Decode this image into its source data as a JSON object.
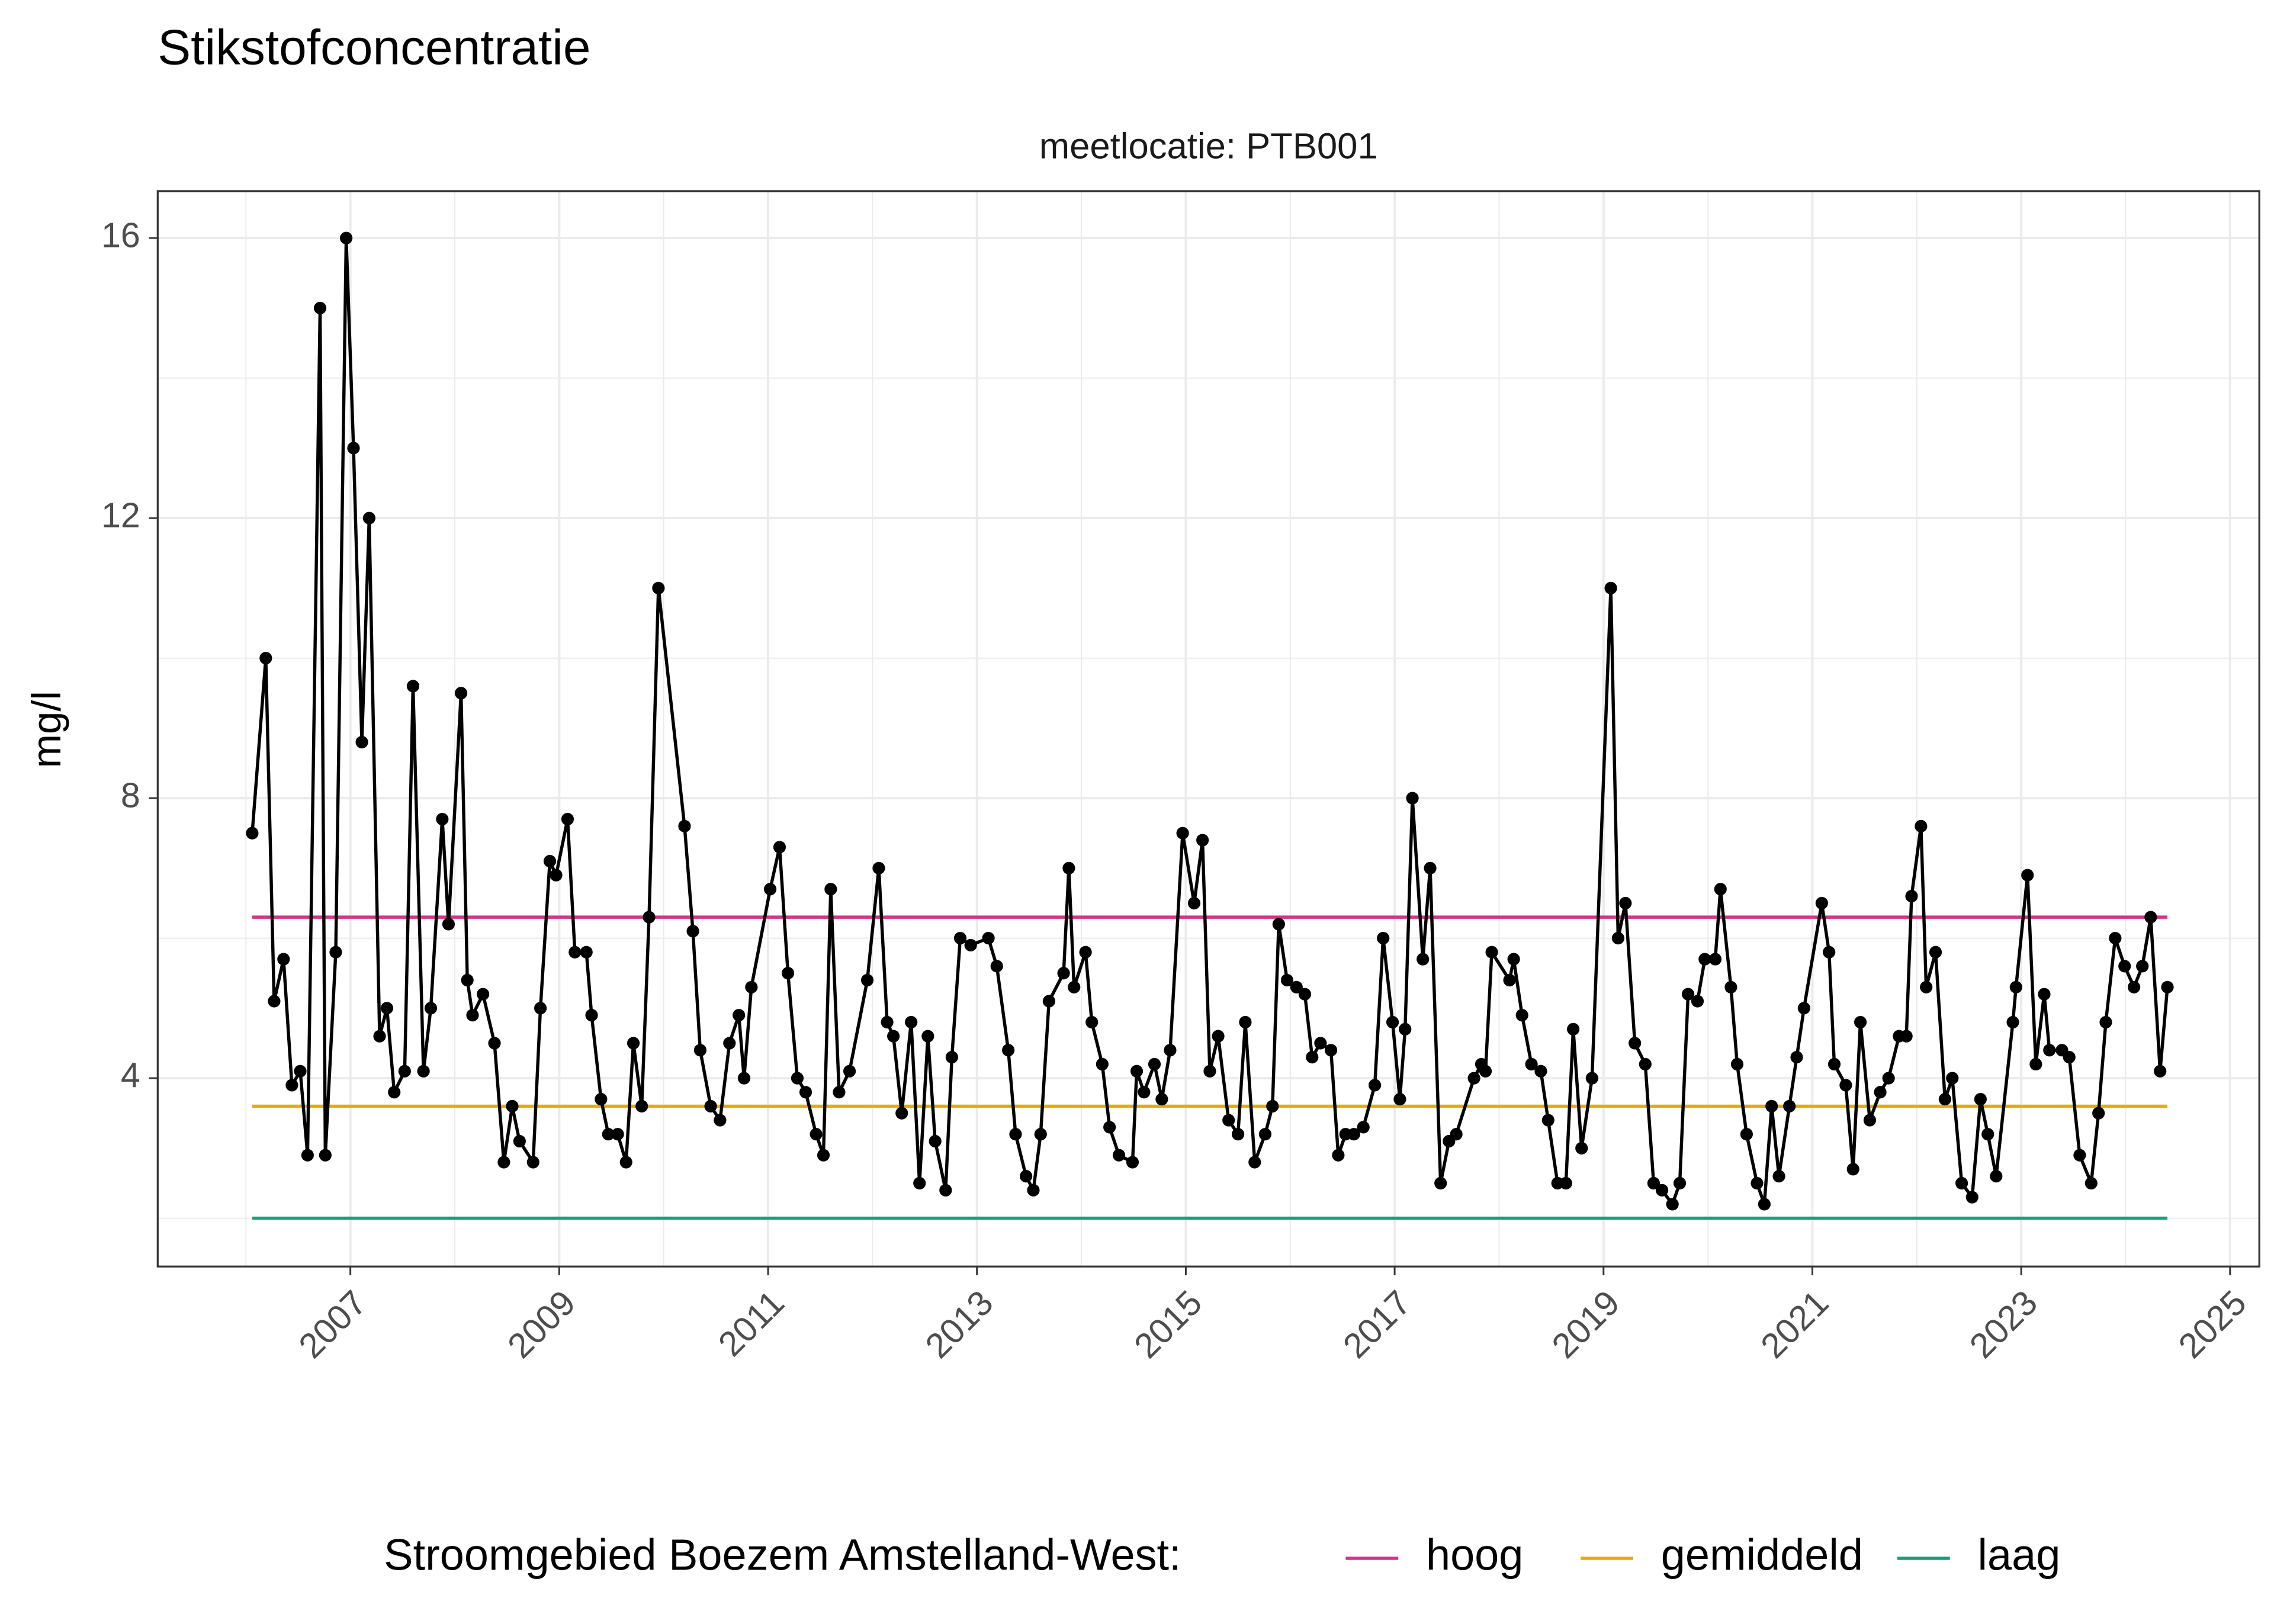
{
  "chart_data": {
    "type": "line",
    "title": "Stikstofconcentratie",
    "subtitle": "meetlocatie: PTB001",
    "ylabel": "mg/l",
    "xlim": [
      2005.155,
      2025.28
    ],
    "xticks": [
      2007,
      2009,
      2011,
      2013,
      2015,
      2017,
      2019,
      2021,
      2023,
      2025
    ],
    "x_minor_grid": [
      2006,
      2008,
      2010,
      2012,
      2014,
      2016,
      2018,
      2020,
      2022,
      2024
    ],
    "ylim": [
      1.31,
      16.67
    ],
    "yticks": [
      4,
      8,
      12,
      16
    ],
    "y_minor_grid": [
      2,
      6,
      10,
      14
    ],
    "grid": true,
    "legend_position": "bottom",
    "legend_title": "Stroomgebied Boezem Amstelland-West:",
    "series": [
      {
        "color": "#000000",
        "markers": true,
        "x": [
          2006.06,
          2006.19,
          2006.27,
          2006.36,
          2006.44,
          2006.52,
          2006.59,
          2006.71,
          2006.76,
          2006.86,
          2006.96,
          2007.03,
          2007.11,
          2007.18,
          2007.28,
          2007.35,
          2007.42,
          2007.52,
          2007.6,
          2007.7,
          2007.77,
          2007.88,
          2007.94,
          2008.06,
          2008.12,
          2008.17,
          2008.27,
          2008.38,
          2008.47,
          2008.55,
          2008.62,
          2008.75,
          2008.82,
          2008.91,
          2008.97,
          2009.08,
          2009.15,
          2009.26,
          2009.31,
          2009.4,
          2009.47,
          2009.56,
          2009.64,
          2009.71,
          2009.79,
          2009.86,
          2009.95,
          2010.2,
          2010.28,
          2010.35,
          2010.45,
          2010.54,
          2010.63,
          2010.72,
          2010.77,
          2010.84,
          2011.02,
          2011.11,
          2011.19,
          2011.28,
          2011.36,
          2011.46,
          2011.53,
          2011.6,
          2011.68,
          2011.78,
          2011.95,
          2012.06,
          2012.14,
          2012.2,
          2012.28,
          2012.37,
          2012.45,
          2012.53,
          2012.6,
          2012.7,
          2012.76,
          2012.84,
          2012.94,
          2013.11,
          2013.19,
          2013.3,
          2013.37,
          2013.47,
          2013.54,
          2013.61,
          2013.69,
          2013.83,
          2013.88,
          2013.93,
          2014.04,
          2014.1,
          2014.2,
          2014.27,
          2014.36,
          2014.49,
          2014.53,
          2014.6,
          2014.7,
          2014.77,
          2014.85,
          2014.97,
          2015.08,
          2015.16,
          2015.23,
          2015.31,
          2015.41,
          2015.5,
          2015.57,
          2015.66,
          2015.76,
          2015.83,
          2015.89,
          2015.97,
          2016.06,
          2016.14,
          2016.21,
          2016.29,
          2016.39,
          2016.46,
          2016.53,
          2016.61,
          2016.7,
          2016.81,
          2016.89,
          2016.98,
          2017.05,
          2017.1,
          2017.17,
          2017.27,
          2017.34,
          2017.44,
          2017.52,
          2017.59,
          2017.76,
          2017.83,
          2017.87,
          2017.93,
          2018.1,
          2018.14,
          2018.22,
          2018.31,
          2018.4,
          2018.47,
          2018.56,
          2018.64,
          2018.71,
          2018.79,
          2018.89,
          2019.07,
          2019.14,
          2019.21,
          2019.3,
          2019.4,
          2019.48,
          2019.56,
          2019.66,
          2019.73,
          2019.81,
          2019.9,
          2019.97,
          2020.07,
          2020.12,
          2020.22,
          2020.28,
          2020.37,
          2020.47,
          2020.54,
          2020.61,
          2020.68,
          2020.78,
          2020.85,
          2020.92,
          2021.09,
          2021.16,
          2021.21,
          2021.32,
          2021.39,
          2021.46,
          2021.55,
          2021.65,
          2021.73,
          2021.83,
          2021.9,
          2021.95,
          2022.04,
          2022.09,
          2022.18,
          2022.27,
          2022.34,
          2022.43,
          2022.53,
          2022.61,
          2022.68,
          2022.76,
          2022.92,
          2022.95,
          2023.06,
          2023.14,
          2023.22,
          2023.27,
          2023.39,
          2023.46,
          2023.56,
          2023.67,
          2023.74,
          2023.81,
          2023.9,
          2023.99,
          2024.08,
          2024.16,
          2024.24,
          2024.33,
          2024.4
        ],
        "values": [
          7.5,
          10.0,
          5.1,
          5.7,
          3.9,
          4.1,
          2.9,
          15.0,
          2.9,
          5.8,
          16.0,
          13.0,
          8.8,
          12.0,
          4.6,
          5.0,
          3.8,
          4.1,
          9.6,
          4.1,
          5.0,
          7.7,
          6.2,
          9.5,
          5.4,
          4.9,
          5.2,
          4.5,
          2.8,
          3.6,
          3.1,
          2.8,
          5.0,
          7.1,
          6.9,
          7.7,
          5.8,
          5.8,
          4.9,
          3.7,
          3.2,
          3.2,
          2.8,
          4.5,
          3.6,
          6.3,
          11.0,
          7.6,
          6.1,
          4.4,
          3.6,
          3.4,
          4.5,
          4.9,
          4.0,
          5.3,
          6.7,
          7.3,
          5.5,
          4.0,
          3.8,
          3.2,
          2.9,
          6.7,
          3.8,
          4.1,
          5.4,
          7.0,
          4.8,
          4.6,
          3.5,
          4.8,
          2.5,
          4.6,
          3.1,
          2.4,
          4.3,
          6.0,
          5.9,
          6.0,
          5.6,
          4.4,
          3.2,
          2.6,
          2.4,
          3.2,
          5.1,
          5.5,
          7.0,
          5.3,
          5.8,
          4.8,
          4.2,
          3.3,
          2.9,
          2.8,
          4.1,
          3.8,
          4.2,
          3.7,
          4.4,
          7.5,
          6.5,
          7.4,
          4.1,
          4.6,
          3.4,
          3.2,
          4.8,
          2.8,
          3.2,
          3.6,
          6.2,
          5.4,
          5.3,
          5.2,
          4.3,
          4.5,
          4.4,
          2.9,
          3.2,
          3.2,
          3.3,
          3.9,
          6.0,
          4.8,
          3.7,
          4.7,
          8.0,
          5.7,
          7.0,
          2.5,
          3.1,
          3.2,
          4.0,
          4.2,
          4.1,
          5.8,
          5.4,
          5.7,
          4.9,
          4.2,
          4.1,
          3.4,
          2.5,
          2.5,
          4.7,
          3.0,
          4.0,
          11.0,
          6.0,
          6.5,
          4.5,
          4.2,
          2.5,
          2.4,
          2.2,
          2.5,
          5.2,
          5.1,
          5.7,
          5.7,
          6.7,
          5.3,
          4.2,
          3.2,
          2.5,
          2.2,
          3.6,
          2.6,
          3.6,
          4.3,
          5.0,
          6.5,
          5.8,
          4.2,
          3.9,
          2.7,
          4.8,
          3.4,
          3.8,
          4.0,
          4.6,
          4.6,
          6.6,
          7.6,
          5.3,
          5.8,
          3.7,
          4.0,
          2.5,
          2.3,
          3.7,
          3.2,
          2.6,
          4.8,
          5.3,
          6.9,
          4.2,
          5.2,
          4.4,
          4.4,
          4.3,
          2.9,
          2.5,
          3.5,
          4.8,
          6.0,
          5.6,
          5.3,
          5.6,
          6.3,
          4.1,
          5.3
        ]
      }
    ],
    "reference_lines": [
      {
        "name": "hoog",
        "color": "#d6338a",
        "value": 6.3,
        "x": [
          2006.06,
          2024.4
        ]
      },
      {
        "name": "gemiddeld",
        "color": "#e6ab02",
        "value": 3.6,
        "x": [
          2006.06,
          2024.4
        ]
      },
      {
        "name": "laag",
        "color": "#1b9e77",
        "value": 2.0,
        "x": [
          2006.06,
          2024.4
        ]
      }
    ]
  }
}
